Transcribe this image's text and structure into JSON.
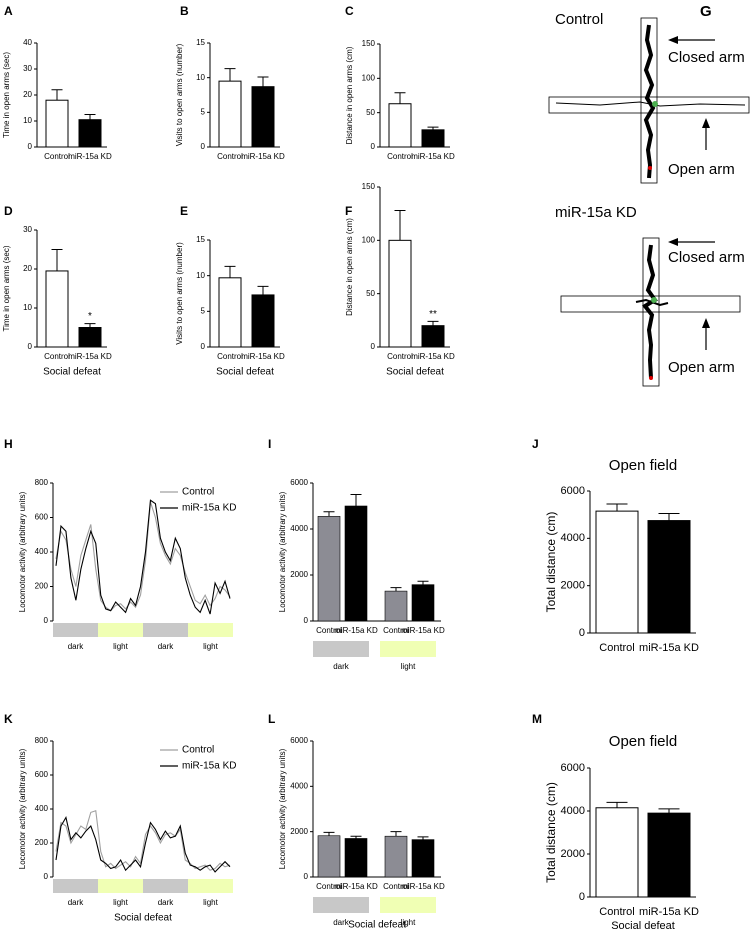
{
  "chart_data": [
    {
      "panel": "A",
      "type": "bar",
      "y_label": "Time in open arms (sec)",
      "categories": [
        "Control",
        "miR-15a KD"
      ],
      "values": [
        18,
        10.5
      ],
      "errors": [
        4,
        2
      ],
      "colors": [
        "#ffffff",
        "#000000"
      ],
      "ylim": [
        0,
        40
      ],
      "yticks": [
        0,
        10,
        20,
        30,
        40
      ]
    },
    {
      "panel": "B",
      "type": "bar",
      "y_label": "Visits to open arms (number)",
      "categories": [
        "Control",
        "miR-15a KD"
      ],
      "values": [
        9.5,
        8.7
      ],
      "errors": [
        1.8,
        1.4
      ],
      "colors": [
        "#ffffff",
        "#000000"
      ],
      "ylim": [
        0,
        15
      ],
      "yticks": [
        0,
        5,
        10,
        15
      ]
    },
    {
      "panel": "C",
      "type": "bar",
      "y_label": "Distance in open arms (cm)",
      "categories": [
        "Control",
        "miR-15a KD"
      ],
      "values": [
        63,
        25
      ],
      "errors": [
        16,
        4
      ],
      "colors": [
        "#ffffff",
        "#000000"
      ],
      "ylim": [
        0,
        150
      ],
      "yticks": [
        0,
        50,
        100,
        150
      ]
    },
    {
      "panel": "D",
      "type": "bar",
      "y_label": "Time in open arms (sec)",
      "categories": [
        "Control",
        "miR-15a KD"
      ],
      "values": [
        19.5,
        5
      ],
      "errors": [
        5.5,
        1
      ],
      "annotations": [
        null,
        "*"
      ],
      "colors": [
        "#ffffff",
        "#000000"
      ],
      "ylim": [
        0,
        30
      ],
      "yticks": [
        0,
        10,
        20,
        30
      ],
      "subtitle": "Social defeat"
    },
    {
      "panel": "E",
      "type": "bar",
      "y_label": "Visits to open arms (number)",
      "categories": [
        "Control",
        "miR-15a KD"
      ],
      "values": [
        9.7,
        7.3
      ],
      "errors": [
        1.6,
        1.2
      ],
      "colors": [
        "#ffffff",
        "#000000"
      ],
      "ylim": [
        0,
        15
      ],
      "yticks": [
        0,
        5,
        10,
        15
      ],
      "subtitle": "Social defeat"
    },
    {
      "panel": "F",
      "type": "bar",
      "y_label": "Distance in open arms (cm)",
      "categories": [
        "Control",
        "miR-15a KD"
      ],
      "values": [
        100,
        20
      ],
      "errors": [
        28,
        4
      ],
      "annotations": [
        null,
        "**"
      ],
      "colors": [
        "#ffffff",
        "#000000"
      ],
      "ylim": [
        0,
        150
      ],
      "yticks": [
        0,
        50,
        100,
        150
      ],
      "subtitle": "Social defeat"
    },
    {
      "panel": "H",
      "type": "line",
      "y_label": "Locomotor activity (arbitrary units)",
      "ylim": [
        0,
        800
      ],
      "yticks": [
        0,
        200,
        400,
        600,
        800
      ],
      "phases": [
        "dark",
        "light",
        "dark",
        "light"
      ],
      "phase_colors": [
        "#c8c8c8",
        "#f0ffb4",
        "#c8c8c8",
        "#f0ffb4"
      ],
      "series": [
        {
          "name": "Control",
          "color": "#a0a0a0",
          "values": [
            360,
            520,
            470,
            300,
            200,
            380,
            470,
            560,
            300,
            120,
            80,
            60,
            90,
            100,
            70,
            110,
            80,
            150,
            350,
            690,
            600,
            450,
            380,
            330,
            420,
            380,
            280,
            200,
            120,
            100,
            150,
            90,
            130,
            200,
            180,
            140
          ]
        },
        {
          "name": "miR-15a KD",
          "color": "#000000",
          "values": [
            320,
            550,
            520,
            250,
            120,
            300,
            420,
            520,
            450,
            150,
            70,
            60,
            110,
            80,
            50,
            130,
            90,
            200,
            400,
            700,
            680,
            480,
            400,
            350,
            480,
            420,
            250,
            150,
            80,
            50,
            120,
            40,
            220,
            160,
            230,
            130
          ]
        }
      ]
    },
    {
      "panel": "I",
      "type": "grouped_bar",
      "y_label": "Locomotor activity (arbitrary units)",
      "ylim": [
        0,
        6000
      ],
      "yticks": [
        0,
        2000,
        4000,
        6000
      ],
      "groups": [
        "dark",
        "light"
      ],
      "group_colors": [
        "#c8c8c8",
        "#f0ffb4"
      ],
      "series": [
        {
          "name": "Control",
          "color": "#8c8c94",
          "values": [
            4550,
            1300
          ],
          "errors": [
            200,
            150
          ]
        },
        {
          "name": "miR-15a KD",
          "color": "#000000",
          "values": [
            5000,
            1580
          ],
          "errors": [
            500,
            150
          ]
        }
      ]
    },
    {
      "panel": "J",
      "type": "bar",
      "title": "Open field",
      "y_label": "Total distance (cm)",
      "categories": [
        "Control",
        "miR-15a KD"
      ],
      "values": [
        5150,
        4750
      ],
      "errors": [
        300,
        300
      ],
      "colors": [
        "#ffffff",
        "#000000"
      ],
      "ylim": [
        0,
        6000
      ],
      "yticks": [
        0,
        2000,
        4000,
        6000
      ]
    },
    {
      "panel": "K",
      "type": "line",
      "y_label": "Locomotor activity (arbitrary units)",
      "ylim": [
        0,
        800
      ],
      "yticks": [
        0,
        200,
        400,
        600,
        800
      ],
      "phases": [
        "dark",
        "light",
        "dark",
        "light"
      ],
      "phase_colors": [
        "#c8c8c8",
        "#f0ffb4",
        "#c8c8c8",
        "#f0ffb4"
      ],
      "subtitle": "Social defeat",
      "series": [
        {
          "name": "Control",
          "color": "#a0a0a0",
          "values": [
            150,
            320,
            300,
            200,
            250,
            300,
            280,
            380,
            390,
            150,
            60,
            80,
            50,
            70,
            90,
            60,
            120,
            80,
            250,
            300,
            260,
            200,
            250,
            260,
            240,
            280,
            100,
            80,
            50,
            60,
            70,
            40,
            50,
            80,
            60,
            70
          ]
        },
        {
          "name": "miR-15a KD",
          "color": "#000000",
          "values": [
            100,
            300,
            350,
            220,
            260,
            230,
            270,
            300,
            220,
            100,
            80,
            50,
            60,
            100,
            40,
            70,
            100,
            60,
            200,
            320,
            280,
            220,
            270,
            230,
            240,
            300,
            140,
            70,
            60,
            40,
            60,
            70,
            30,
            60,
            90,
            60
          ]
        }
      ]
    },
    {
      "panel": "L",
      "type": "grouped_bar",
      "y_label": "Locomotor activity (arbitrary units)",
      "ylim": [
        0,
        6000
      ],
      "yticks": [
        0,
        2000,
        4000,
        6000
      ],
      "groups": [
        "dark",
        "light"
      ],
      "group_colors": [
        "#c8c8c8",
        "#f0ffb4"
      ],
      "subtitle": "Social defeat",
      "series": [
        {
          "name": "Control",
          "color": "#8c8c94",
          "values": [
            1820,
            1800
          ],
          "errors": [
            150,
            200
          ]
        },
        {
          "name": "miR-15a KD",
          "color": "#000000",
          "values": [
            1700,
            1650
          ],
          "errors": [
            100,
            120
          ]
        }
      ]
    },
    {
      "panel": "M",
      "type": "bar",
      "title": "Open field",
      "y_label": "Total distance (cm)",
      "categories": [
        "Control",
        "miR-15a KD"
      ],
      "values": [
        4150,
        3900
      ],
      "errors": [
        250,
        200
      ],
      "colors": [
        "#ffffff",
        "#000000"
      ],
      "ylim": [
        0,
        6000
      ],
      "yticks": [
        0,
        2000,
        4000,
        6000
      ],
      "subtitle": "Social defeat"
    }
  ],
  "maze": {
    "panel": "G",
    "conditions": [
      {
        "label": "Control",
        "closed_arm": "Closed arm",
        "open_arm": "Open arm"
      },
      {
        "label": "miR-15a KD",
        "closed_arm": "Closed arm",
        "open_arm": "Open arm"
      }
    ]
  }
}
